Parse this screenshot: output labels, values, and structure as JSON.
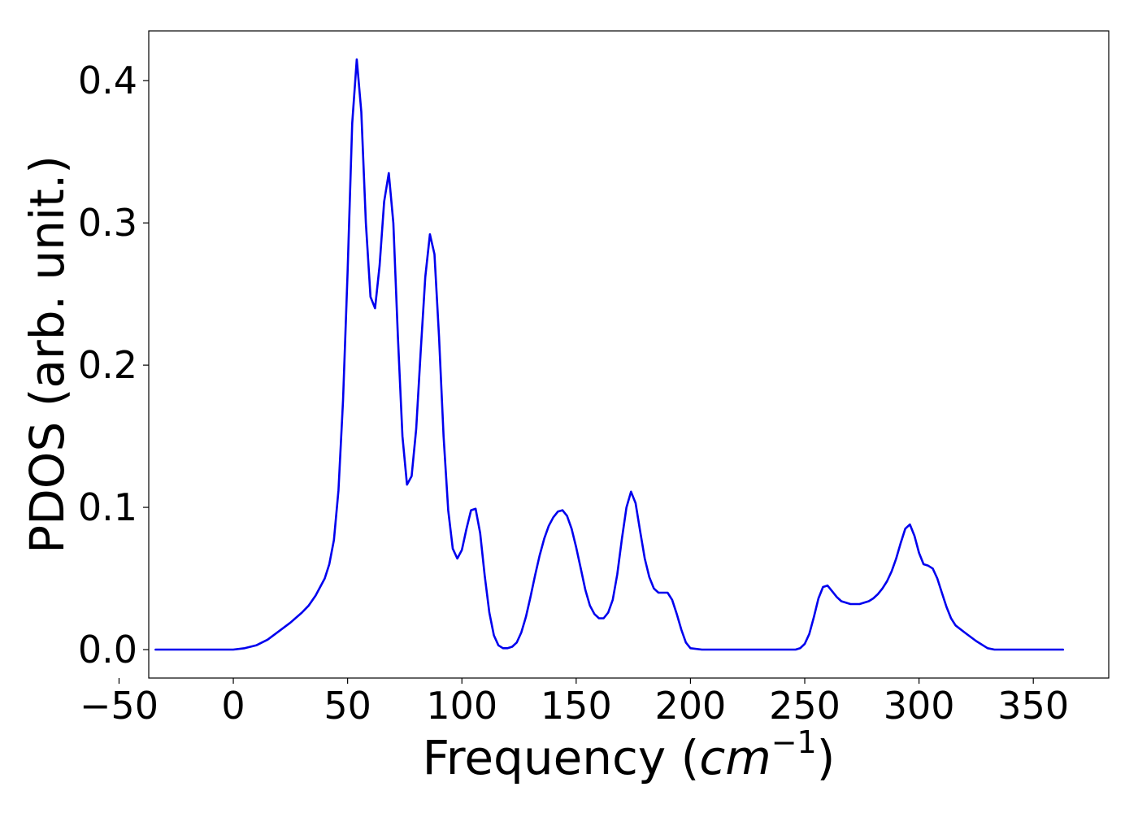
{
  "chart_data": {
    "type": "line",
    "title": "",
    "xlabel": "Frequency",
    "xlabel_unit_base": "cm",
    "xlabel_unit_exp": "−1",
    "ylabel": "PDOS (arb. unit.)",
    "xlim": [
      -37,
      383
    ],
    "ylim": [
      -0.02,
      0.435
    ],
    "xticks": [
      -50,
      0,
      50,
      100,
      150,
      200,
      250,
      300,
      350
    ],
    "xtick_labels": [
      "−50",
      "0",
      "50",
      "100",
      "150",
      "200",
      "250",
      "300",
      "350"
    ],
    "yticks": [
      0.0,
      0.1,
      0.2,
      0.3,
      0.4
    ],
    "ytick_labels": [
      "0.0",
      "0.1",
      "0.2",
      "0.3",
      "0.4"
    ],
    "grid": false,
    "legend": "none",
    "series": [
      {
        "color": "#0000ee",
        "x": [
          -34,
          -20,
          -10,
          0,
          5,
          10,
          15,
          20,
          25,
          30,
          33,
          36,
          38,
          40,
          42,
          44,
          46,
          48,
          50,
          52,
          54,
          56,
          58,
          60,
          62,
          64,
          66,
          68,
          70,
          72,
          74,
          76,
          78,
          80,
          82,
          84,
          86,
          88,
          90,
          92,
          94,
          96,
          98,
          100,
          102,
          104,
          106,
          108,
          110,
          112,
          114,
          116,
          118,
          120,
          122,
          124,
          126,
          128,
          130,
          132,
          134,
          136,
          138,
          140,
          142,
          144,
          146,
          148,
          150,
          152,
          154,
          156,
          158,
          160,
          162,
          164,
          166,
          168,
          170,
          172,
          174,
          176,
          178,
          180,
          182,
          184,
          186,
          188,
          190,
          192,
          194,
          196,
          198,
          200,
          205,
          210,
          220,
          230,
          240,
          246,
          248,
          250,
          252,
          254,
          256,
          258,
          260,
          262,
          264,
          266,
          268,
          270,
          272,
          274,
          276,
          278,
          280,
          282,
          284,
          286,
          288,
          290,
          292,
          294,
          296,
          298,
          300,
          302,
          304,
          306,
          308,
          310,
          312,
          314,
          316,
          320,
          325,
          330,
          333,
          336,
          340,
          350,
          363
        ],
        "y": [
          0.0,
          0.0,
          0.0,
          0.0,
          0.001,
          0.003,
          0.007,
          0.013,
          0.019,
          0.026,
          0.031,
          0.038,
          0.044,
          0.05,
          0.06,
          0.077,
          0.112,
          0.175,
          0.265,
          0.37,
          0.415,
          0.378,
          0.3,
          0.248,
          0.24,
          0.27,
          0.315,
          0.335,
          0.3,
          0.22,
          0.15,
          0.116,
          0.122,
          0.155,
          0.21,
          0.262,
          0.292,
          0.278,
          0.22,
          0.15,
          0.098,
          0.071,
          0.064,
          0.07,
          0.085,
          0.098,
          0.099,
          0.082,
          0.052,
          0.026,
          0.01,
          0.003,
          0.001,
          0.001,
          0.002,
          0.005,
          0.012,
          0.023,
          0.037,
          0.052,
          0.066,
          0.078,
          0.087,
          0.093,
          0.097,
          0.098,
          0.094,
          0.085,
          0.072,
          0.057,
          0.042,
          0.031,
          0.025,
          0.022,
          0.022,
          0.026,
          0.035,
          0.053,
          0.078,
          0.1,
          0.111,
          0.103,
          0.083,
          0.064,
          0.051,
          0.043,
          0.04,
          0.04,
          0.04,
          0.035,
          0.025,
          0.014,
          0.005,
          0.001,
          0.0,
          0.0,
          0.0,
          0.0,
          0.0,
          0.0,
          0.001,
          0.004,
          0.011,
          0.023,
          0.036,
          0.044,
          0.045,
          0.041,
          0.037,
          0.034,
          0.033,
          0.032,
          0.032,
          0.032,
          0.033,
          0.034,
          0.036,
          0.039,
          0.043,
          0.048,
          0.055,
          0.064,
          0.075,
          0.085,
          0.088,
          0.08,
          0.068,
          0.06,
          0.059,
          0.057,
          0.05,
          0.04,
          0.03,
          0.022,
          0.017,
          0.012,
          0.006,
          0.001,
          0.0,
          0.0,
          0.0,
          0.0,
          0.0
        ]
      }
    ]
  }
}
